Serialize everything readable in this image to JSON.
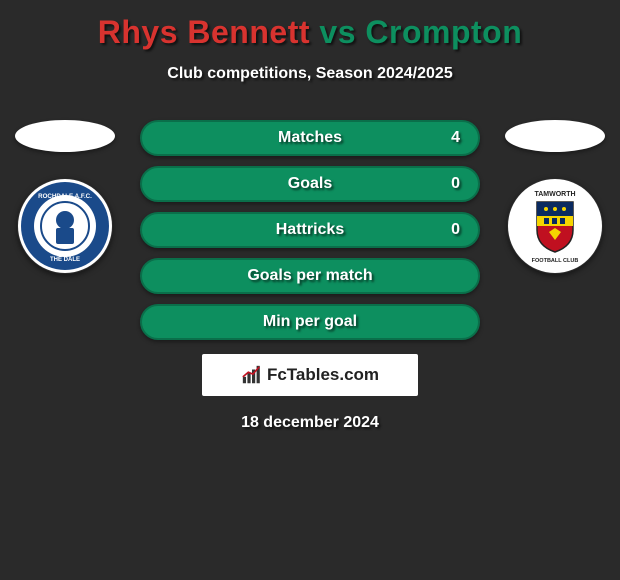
{
  "title": {
    "player1": "Rhys Bennett",
    "vs": "vs",
    "player2": "Crompton",
    "player1_color": "#d8332f",
    "vs_color": "#0d8f5f",
    "player2_color": "#0d8f5f"
  },
  "subtitle": "Club competitions, Season 2024/2025",
  "left_crest": {
    "bg": "#ffffff",
    "ring_color": "#1a4a8a",
    "inner_bg": "#ffffff",
    "accent": "#1a4a8a",
    "label_top": "ROCHDALE",
    "label_bottom": "THE DALE"
  },
  "right_crest": {
    "bg": "#ffffff",
    "shield_top": "#0a2a60",
    "shield_mid": "#f5d400",
    "shield_bot": "#c01020",
    "label_top": "TAMWORTH",
    "label_bottom": "FOOTBALL CLUB"
  },
  "stats": [
    {
      "label": "Matches",
      "value": "4",
      "bg": "#0d8f5f",
      "border": "#0a6f4a",
      "text": "#ffffff"
    },
    {
      "label": "Goals",
      "value": "0",
      "bg": "#0d8f5f",
      "border": "#0a6f4a",
      "text": "#ffffff"
    },
    {
      "label": "Hattricks",
      "value": "0",
      "bg": "#0d8f5f",
      "border": "#0a6f4a",
      "text": "#ffffff"
    },
    {
      "label": "Goals per match",
      "value": "",
      "bg": "#0d8f5f",
      "border": "#0a6f4a",
      "text": "#ffffff"
    },
    {
      "label": "Min per goal",
      "value": "",
      "bg": "#0d8f5f",
      "border": "#0a6f4a",
      "text": "#ffffff"
    }
  ],
  "brand": "FcTables.com",
  "date": "18 december 2024",
  "background": "#2a2a2a"
}
